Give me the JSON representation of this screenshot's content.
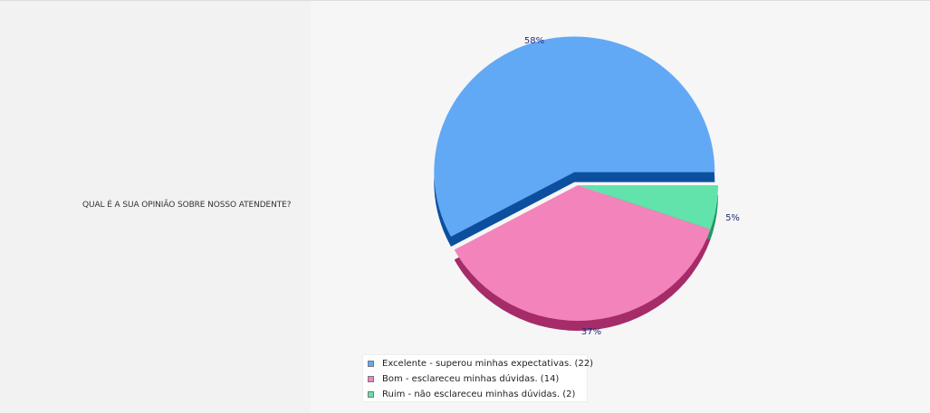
{
  "question": "QUAL É A SUA OPINIÃO SOBRE NOSSO ATENDENTE?",
  "chart_data": {
    "type": "pie",
    "title": "",
    "slices": [
      {
        "label": "Excelente - superou minhas expectativas. (22)",
        "count": 22,
        "percent_label": "58%",
        "color": "#62a9f5",
        "side_color": "#0b4f9e"
      },
      {
        "label": "Bom - esclareceu minhas dúvidas. (14)",
        "count": 14,
        "percent_label": "37%",
        "color": "#f283bb",
        "side_color": "#a52b69"
      },
      {
        "label": "Ruim - não esclareceu minhas dúvidas. (2)",
        "count": 2,
        "percent_label": "5%",
        "color": "#63e3ac",
        "side_color": "#1f9a62"
      }
    ],
    "exploded": "Excelente - superou minhas expectativas. (22)",
    "legend_position": "bottom",
    "label_color": "#1f2d7a"
  }
}
